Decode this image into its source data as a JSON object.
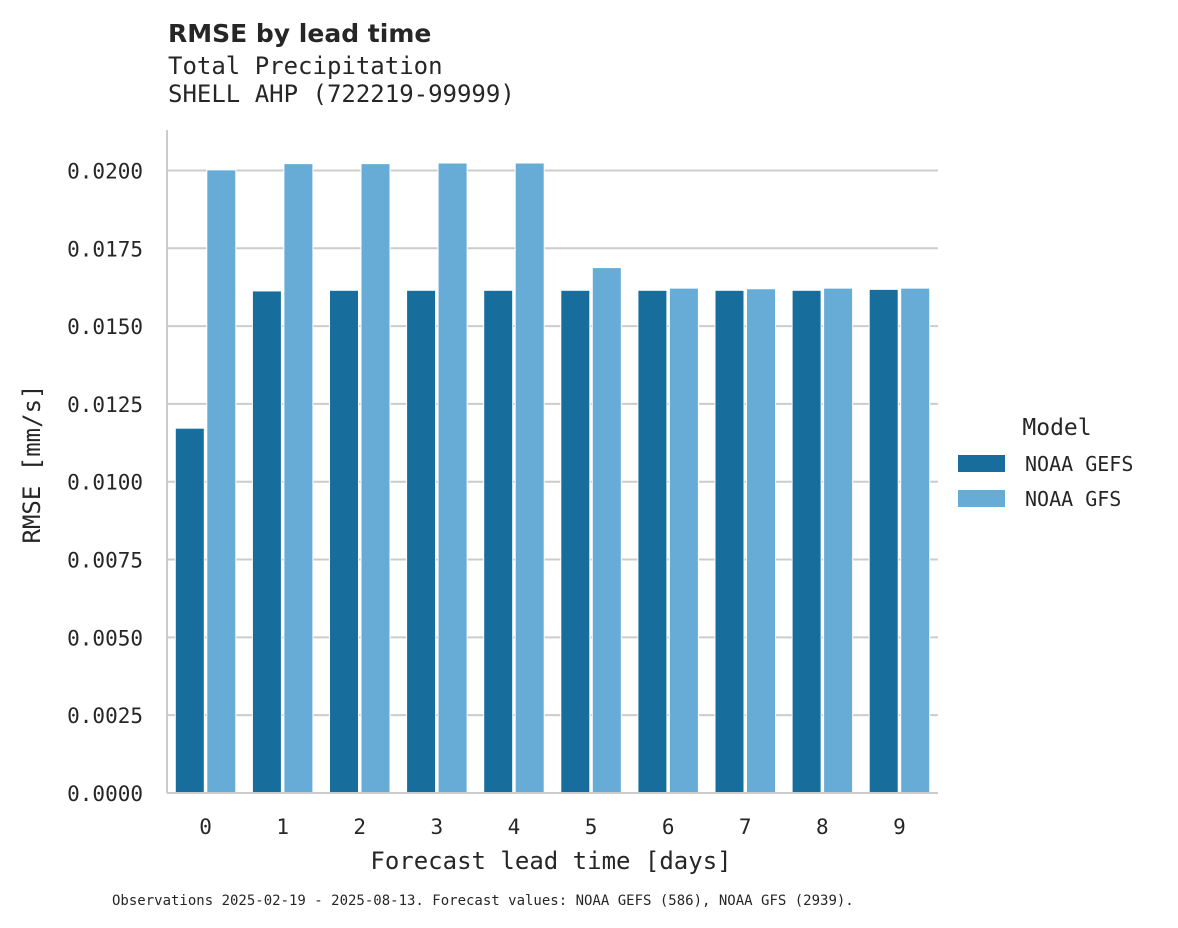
{
  "chart_data": {
    "type": "bar",
    "title": "RMSE by lead time",
    "subtitle_lines": [
      "Total Precipitation",
      "SHELL AHP (722219-99999)"
    ],
    "xlabel": "Forecast lead time [days]",
    "ylabel": "RMSE [mm/s]",
    "categories": [
      "0",
      "1",
      "2",
      "3",
      "4",
      "5",
      "6",
      "7",
      "8",
      "9"
    ],
    "ylim": [
      0,
      0.0213
    ],
    "yticks": [
      0.0,
      0.0025,
      0.005,
      0.0075,
      0.01,
      0.0125,
      0.015,
      0.0175,
      0.02
    ],
    "ytick_labels": [
      "0.0000",
      "0.0025",
      "0.0050",
      "0.0075",
      "0.0100",
      "0.0125",
      "0.0150",
      "0.0175",
      "0.0200"
    ],
    "grid": true,
    "legend": {
      "title": "Model",
      "placement": "right"
    },
    "series": [
      {
        "name": "NOAA GEFS",
        "color": "#176d9c",
        "values": [
          0.01172,
          0.01613,
          0.01615,
          0.01615,
          0.01615,
          0.01615,
          0.01615,
          0.01615,
          0.01615,
          0.01618
        ]
      },
      {
        "name": "NOAA GFS",
        "color": "#67acd6",
        "values": [
          0.02002,
          0.02022,
          0.02022,
          0.02024,
          0.02024,
          0.01688,
          0.01622,
          0.0162,
          0.01622,
          0.01622
        ]
      }
    ],
    "footnote": "Observations 2025-02-19 - 2025-08-13. Forecast values: NOAA GEFS (586), NOAA GFS (2939)."
  }
}
